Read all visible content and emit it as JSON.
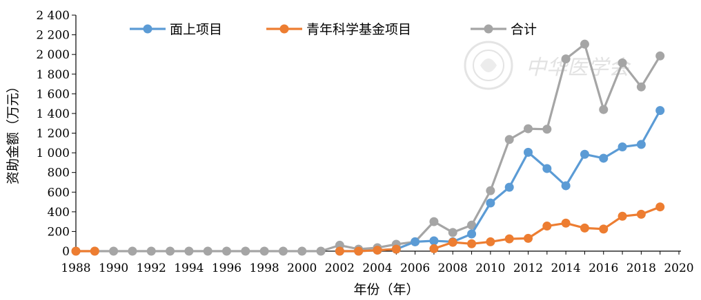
{
  "chart_data": {
    "type": "line",
    "xlabel": "年份（年）",
    "ylabel": "资助金额（万元）",
    "xlim": [
      1988,
      2020
    ],
    "ylim": [
      0,
      2400
    ],
    "x_ticks": [
      "1988",
      "1990",
      "1992",
      "1994",
      "1996",
      "1998",
      "2000",
      "2002",
      "2004",
      "2006",
      "2008",
      "2010",
      "2012",
      "2014",
      "2016",
      "2018",
      "2020"
    ],
    "y_ticks": [
      "0",
      "200",
      "400",
      "600",
      "800",
      "1 000",
      "1 200",
      "1 400",
      "1 600",
      "1 800",
      "2 000",
      "2 200",
      "2 400"
    ],
    "legend_position": "top",
    "grid": false,
    "series": [
      {
        "name": "面上项目",
        "color": "#5b9bd5",
        "points": [
          [
            2002,
            0
          ],
          [
            2003,
            0
          ],
          [
            2004,
            10
          ],
          [
            2005,
            20
          ],
          [
            2006,
            95
          ],
          [
            2007,
            105
          ],
          [
            2008,
            95
          ],
          [
            2009,
            175
          ],
          [
            2010,
            490
          ],
          [
            2011,
            650
          ],
          [
            2012,
            1005
          ],
          [
            2013,
            840
          ],
          [
            2014,
            665
          ],
          [
            2015,
            985
          ],
          [
            2016,
            945
          ],
          [
            2017,
            1060
          ],
          [
            2018,
            1085
          ],
          [
            2019,
            1430
          ]
        ]
      },
      {
        "name": "青年科学基金项目",
        "color": "#ed7d31",
        "points": [
          [
            1988,
            0
          ],
          [
            1989,
            0
          ],
          [
            2002,
            0
          ],
          [
            2003,
            0
          ],
          [
            2004,
            10
          ],
          [
            2005,
            20
          ],
          [
            2007,
            25
          ],
          [
            2008,
            90
          ],
          [
            2009,
            75
          ],
          [
            2010,
            95
          ],
          [
            2011,
            125
          ],
          [
            2012,
            130
          ],
          [
            2013,
            255
          ],
          [
            2014,
            285
          ],
          [
            2015,
            235
          ],
          [
            2016,
            225
          ],
          [
            2017,
            355
          ],
          [
            2018,
            375
          ],
          [
            2019,
            450
          ]
        ]
      },
      {
        "name": "合计",
        "color": "#a5a5a5",
        "points": [
          [
            1988,
            0
          ],
          [
            1989,
            0
          ],
          [
            1990,
            0
          ],
          [
            1991,
            0
          ],
          [
            1992,
            0
          ],
          [
            1993,
            0
          ],
          [
            1994,
            0
          ],
          [
            1995,
            0
          ],
          [
            1996,
            0
          ],
          [
            1997,
            0
          ],
          [
            1998,
            0
          ],
          [
            1999,
            0
          ],
          [
            2000,
            0
          ],
          [
            2001,
            0
          ],
          [
            2002,
            60
          ],
          [
            2003,
            20
          ],
          [
            2004,
            35
          ],
          [
            2005,
            70
          ],
          [
            2006,
            95
          ],
          [
            2007,
            300
          ],
          [
            2008,
            190
          ],
          [
            2009,
            265
          ],
          [
            2010,
            615
          ],
          [
            2011,
            1135
          ],
          [
            2012,
            1245
          ],
          [
            2013,
            1240
          ],
          [
            2014,
            1955
          ],
          [
            2015,
            2105
          ],
          [
            2016,
            1440
          ],
          [
            2017,
            1915
          ],
          [
            2018,
            1670
          ],
          [
            2019,
            1985
          ]
        ]
      }
    ]
  },
  "watermark": {
    "text": "中华医学会",
    "color": "#e2e2e2",
    "icon": "seal-icon"
  }
}
